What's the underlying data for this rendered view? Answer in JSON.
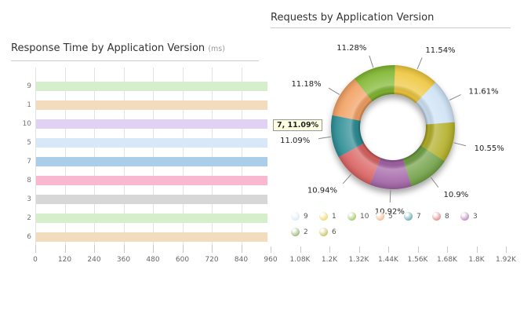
{
  "chart_data": [
    {
      "type": "bar",
      "orientation": "horizontal",
      "title": "Response Time by Application Version",
      "title_suffix": "(ms)",
      "categories": [
        "9",
        "1",
        "10",
        "5",
        "7",
        "8",
        "3",
        "2",
        "6"
      ],
      "values": [
        950,
        950,
        950,
        950,
        950,
        950,
        950,
        950,
        950
      ],
      "bar_colors": [
        "#d5efcd",
        "#f3dcbd",
        "#e1d1f5",
        "#d9e8f9",
        "#aacee9",
        "#f9b8d0",
        "#d7d7d7",
        "#d5efcd",
        "#f3dcbd"
      ],
      "xlim": [
        0,
        1920
      ],
      "x_tick_labels": [
        "0",
        "120",
        "240",
        "360",
        "480",
        "600",
        "720",
        "840",
        "960",
        "1.08K",
        "1.2K",
        "1.32K",
        "1.44K",
        "1.56K",
        "1.68K",
        "1.8K",
        "1.92K"
      ],
      "grid": true,
      "visible_plot_max": 960
    },
    {
      "type": "pie",
      "subtype": "donut",
      "title": "Requests by Application Version",
      "start_angle_deg": -38.6,
      "slices": [
        {
          "label": "10",
          "percent": 11.28,
          "display": "11.28%",
          "color": "#7fb62f"
        },
        {
          "label": "1",
          "percent": 11.54,
          "display": "11.54%",
          "color": "#eec63b"
        },
        {
          "label": "9",
          "percent": 11.61,
          "display": "11.61%",
          "color": "#cde2f5"
        },
        {
          "label": "6",
          "percent": 10.55,
          "display": "10.55%",
          "color": "#b2ae25"
        },
        {
          "label": "2",
          "percent": 10.9,
          "display": "10.9%",
          "color": "#6fa044"
        },
        {
          "label": "3",
          "percent": 10.92,
          "display": "10.92%",
          "color": "#a162a5"
        },
        {
          "label": "8",
          "percent": 10.94,
          "display": "10.94%",
          "color": "#d96060"
        },
        {
          "label": "7",
          "percent": 11.09,
          "display": "11.09%",
          "color": "#2c8c94"
        },
        {
          "label": "5",
          "percent": 11.18,
          "display": "11.18%",
          "color": "#f29f60"
        }
      ],
      "legend_order": [
        "9",
        "1",
        "10",
        "5",
        "7",
        "8",
        "3",
        "2",
        "6"
      ],
      "legend_position": "bottom",
      "tooltip": "7, 11.09%"
    }
  ],
  "colors": {
    "gridline": "#e3e3e3",
    "tick": "#c9c9c9",
    "underline": "#cccccc",
    "axis_text": "#666666",
    "title_text": "#333333"
  }
}
